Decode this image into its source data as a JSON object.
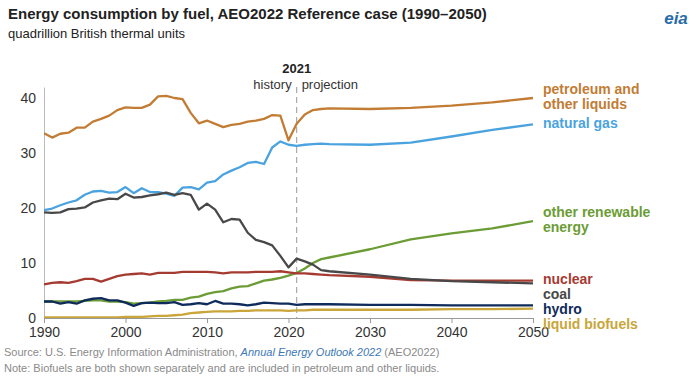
{
  "chart_data": {
    "type": "line",
    "title": "Energy consumption by fuel, AEO2022 Reference case (1990–2050)",
    "subtitle": "quadrillion British thermal units",
    "logo": "eia",
    "x": [
      1990,
      1991,
      1992,
      1993,
      1994,
      1995,
      1996,
      1997,
      1998,
      1999,
      2000,
      2001,
      2002,
      2003,
      2004,
      2005,
      2006,
      2007,
      2008,
      2009,
      2010,
      2011,
      2012,
      2013,
      2014,
      2015,
      2016,
      2017,
      2018,
      2019,
      2020,
      2021,
      2022,
      2023,
      2024,
      2025,
      2030,
      2035,
      2040,
      2045,
      2050
    ],
    "xlim": [
      1990,
      2050
    ],
    "xticks": [
      1990,
      2000,
      2010,
      2020,
      2030,
      2040,
      2050
    ],
    "ylim": [
      0,
      42
    ],
    "yticks": [
      0,
      10,
      20,
      30,
      40
    ],
    "grid": false,
    "annotation": {
      "x": 2021,
      "label": "2021",
      "left_label": "history",
      "right_label": "projection"
    },
    "series": [
      {
        "name": "petroleum and other liquids",
        "color": "#c27c33",
        "values": [
          33.6,
          32.8,
          33.5,
          33.7,
          34.6,
          34.6,
          35.7,
          36.2,
          36.8,
          37.8,
          38.3,
          38.2,
          38.2,
          38.8,
          40.3,
          40.4,
          40.0,
          39.8,
          37.3,
          35.4,
          35.9,
          35.3,
          34.7,
          35.1,
          35.3,
          35.7,
          35.9,
          36.2,
          36.9,
          36.8,
          32.3,
          35.3,
          37.0,
          37.8,
          38.0,
          38.1,
          38.0,
          38.2,
          38.6,
          39.2,
          40.0
        ]
      },
      {
        "name": "natural gas",
        "color": "#4aa3de",
        "values": [
          19.6,
          19.9,
          20.5,
          21.0,
          21.4,
          22.4,
          23.0,
          23.1,
          22.8,
          22.9,
          23.8,
          22.7,
          23.6,
          22.9,
          22.9,
          22.6,
          22.2,
          23.7,
          23.8,
          23.4,
          24.6,
          24.9,
          26.1,
          26.8,
          27.4,
          28.2,
          28.4,
          28.0,
          31.0,
          32.1,
          31.5,
          31.3,
          31.5,
          31.6,
          31.7,
          31.6,
          31.5,
          31.9,
          33.0,
          34.2,
          35.2
        ]
      },
      {
        "name": "other renewable energy",
        "color": "#6b9c35",
        "values": [
          3.0,
          3.0,
          3.0,
          3.0,
          3.0,
          3.1,
          3.2,
          3.2,
          3.0,
          3.0,
          2.9,
          2.6,
          2.7,
          2.8,
          3.0,
          3.1,
          3.3,
          3.3,
          3.7,
          3.9,
          4.4,
          4.7,
          4.9,
          5.4,
          5.7,
          5.8,
          6.3,
          6.8,
          7.0,
          7.3,
          7.7,
          8.2,
          9.0,
          10.0,
          10.7,
          11.0,
          12.5,
          14.3,
          15.4,
          16.3,
          17.6
        ]
      },
      {
        "name": "nuclear",
        "color": "#a53a31",
        "values": [
          6.1,
          6.4,
          6.5,
          6.4,
          6.7,
          7.1,
          7.1,
          6.6,
          7.1,
          7.6,
          7.9,
          8.0,
          8.1,
          7.9,
          8.2,
          8.2,
          8.2,
          8.4,
          8.4,
          8.4,
          8.4,
          8.3,
          8.1,
          8.3,
          8.3,
          8.3,
          8.4,
          8.4,
          8.4,
          8.5,
          8.3,
          8.1,
          8.1,
          8.0,
          7.9,
          7.8,
          7.5,
          6.9,
          6.8,
          6.8,
          6.8
        ]
      },
      {
        "name": "coal",
        "color": "#484848",
        "values": [
          19.2,
          19.1,
          19.2,
          19.8,
          19.9,
          20.1,
          21.0,
          21.4,
          21.7,
          21.6,
          22.6,
          21.9,
          22.0,
          22.3,
          22.5,
          22.8,
          22.4,
          22.7,
          22.4,
          19.7,
          20.8,
          19.7,
          17.4,
          18.0,
          17.9,
          15.5,
          14.2,
          13.8,
          13.2,
          11.3,
          9.2,
          10.8,
          10.3,
          9.7,
          8.7,
          8.5,
          7.9,
          7.1,
          6.7,
          6.5,
          6.3
        ]
      },
      {
        "name": "hydro",
        "color": "#0f2b5b",
        "values": [
          3.0,
          3.0,
          2.6,
          2.9,
          2.6,
          3.2,
          3.5,
          3.6,
          3.2,
          3.2,
          2.8,
          2.2,
          2.7,
          2.8,
          2.7,
          2.7,
          2.9,
          2.4,
          2.5,
          2.7,
          2.5,
          3.1,
          2.6,
          2.6,
          2.5,
          2.3,
          2.5,
          2.8,
          2.7,
          2.6,
          2.6,
          2.4,
          2.5,
          2.5,
          2.5,
          2.5,
          2.4,
          2.4,
          2.3,
          2.3,
          2.3
        ]
      },
      {
        "name": "liquid biofuels",
        "color": "#c9a53a",
        "values": [
          0.1,
          0.1,
          0.1,
          0.1,
          0.1,
          0.1,
          0.1,
          0.1,
          0.1,
          0.1,
          0.2,
          0.2,
          0.2,
          0.3,
          0.4,
          0.4,
          0.5,
          0.6,
          0.9,
          1.0,
          1.1,
          1.2,
          1.2,
          1.2,
          1.3,
          1.3,
          1.4,
          1.4,
          1.4,
          1.4,
          1.3,
          1.4,
          1.4,
          1.5,
          1.5,
          1.5,
          1.5,
          1.5,
          1.6,
          1.6,
          1.7
        ]
      }
    ],
    "source": [
      "Source: U.S. Energy Information Administration, ",
      "Annual Energy Outlook 2022",
      " (AEO2022)"
    ],
    "note": "Note: Biofuels are both shown separately and are included in petroleum and other liquids."
  }
}
